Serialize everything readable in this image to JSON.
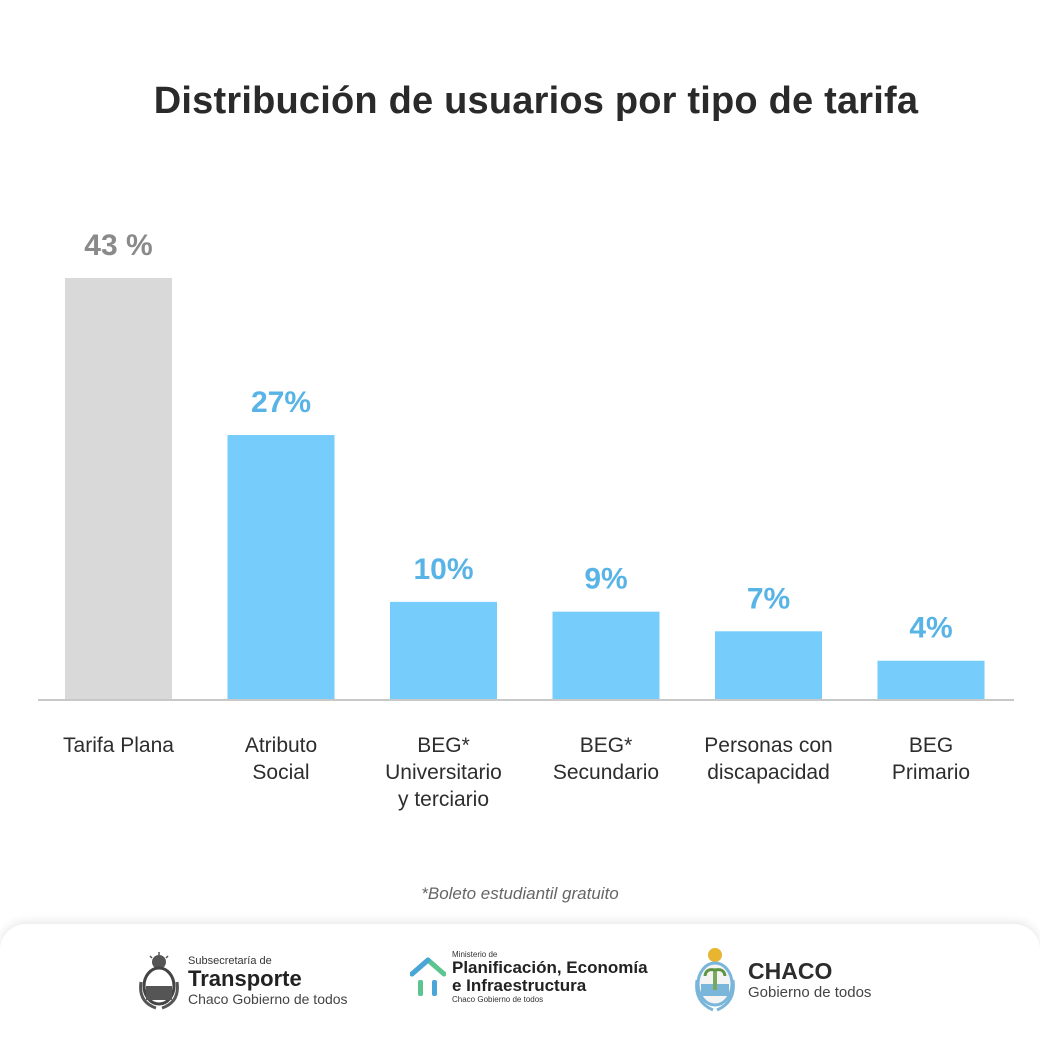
{
  "chart_data": {
    "type": "bar",
    "title": "Distribución de usuarios por tipo de tarifa",
    "categories": [
      "Tarifa Plana",
      "Atributo\nSocial",
      "BEG*\nUniversitario\ny terciario",
      "BEG*\nSecundario",
      "Personas con\ndiscapacidad",
      "BEG\nPrimario"
    ],
    "values": [
      43,
      27,
      10,
      9,
      7,
      4
    ],
    "data_labels": [
      "43 %",
      "27%",
      "10%",
      "9%",
      "7%",
      "4%"
    ],
    "colors": [
      "#d9d9d9",
      "#76ccfb",
      "#76ccfb",
      "#76ccfb",
      "#76ccfb",
      "#76ccfb"
    ],
    "label_colors": [
      "#8a8a8a",
      "#58b4e6",
      "#58b4e6",
      "#58b4e6",
      "#58b4e6",
      "#58b4e6"
    ],
    "ylim": [
      0,
      43
    ],
    "grid": false,
    "xlabel": "",
    "ylabel": ""
  },
  "footnote": "*Boleto estudiantil gratuito",
  "footer": {
    "transporte": {
      "pre": "Subsecretaría de",
      "name": "Transporte",
      "sub": "Chaco Gobierno de todos",
      "icon": "coat-of-arms-icon"
    },
    "ministerio": {
      "pre": "Ministerio de",
      "line1": "Planificación, Economía",
      "line2": "e Infraestructura",
      "sub": "Chaco Gobierno de todos",
      "icon": "house-icon"
    },
    "chaco": {
      "name": "CHACO",
      "sub": "Gobierno de todos",
      "icon": "chaco-seal-icon"
    }
  }
}
